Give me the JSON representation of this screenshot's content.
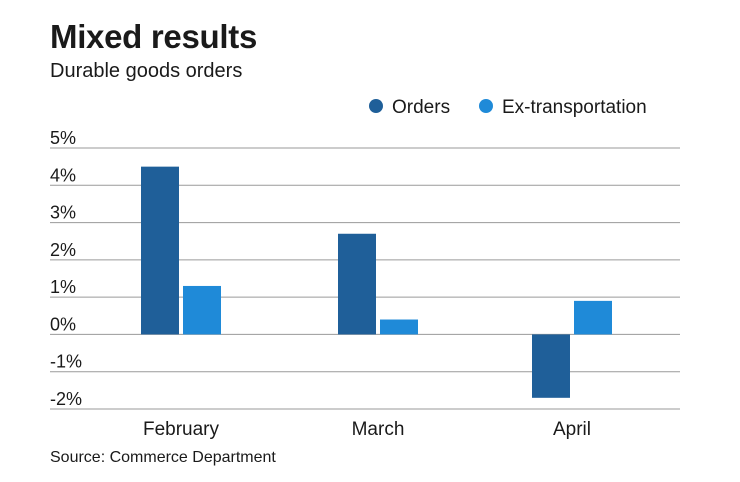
{
  "header": {
    "title": "Mixed results",
    "subtitle": "Durable goods orders"
  },
  "footer": {
    "source": "Source: Commerce Department"
  },
  "colors": {
    "orders": "#1f5f99",
    "ex_transportation": "#1f8ad8",
    "grid": "#9a9a9a"
  },
  "chart_data": {
    "type": "bar",
    "title": "Mixed results",
    "subtitle": "Durable goods orders",
    "categories": [
      "February",
      "March",
      "April"
    ],
    "series": [
      {
        "name": "Orders",
        "values": [
          4.5,
          2.7,
          -1.7
        ]
      },
      {
        "name": "Ex-transportation",
        "values": [
          1.3,
          0.4,
          0.9
        ]
      }
    ],
    "ylim": [
      -2,
      5
    ],
    "yticks": [
      5,
      4,
      3,
      2,
      1,
      0,
      -1,
      -2
    ],
    "ytick_labels": [
      "5%",
      "4%",
      "3%",
      "2%",
      "1%",
      "0%",
      "-1%",
      "-2%"
    ],
    "grid": true,
    "legend_position": "top-right",
    "source": "Source: Commerce Department"
  }
}
